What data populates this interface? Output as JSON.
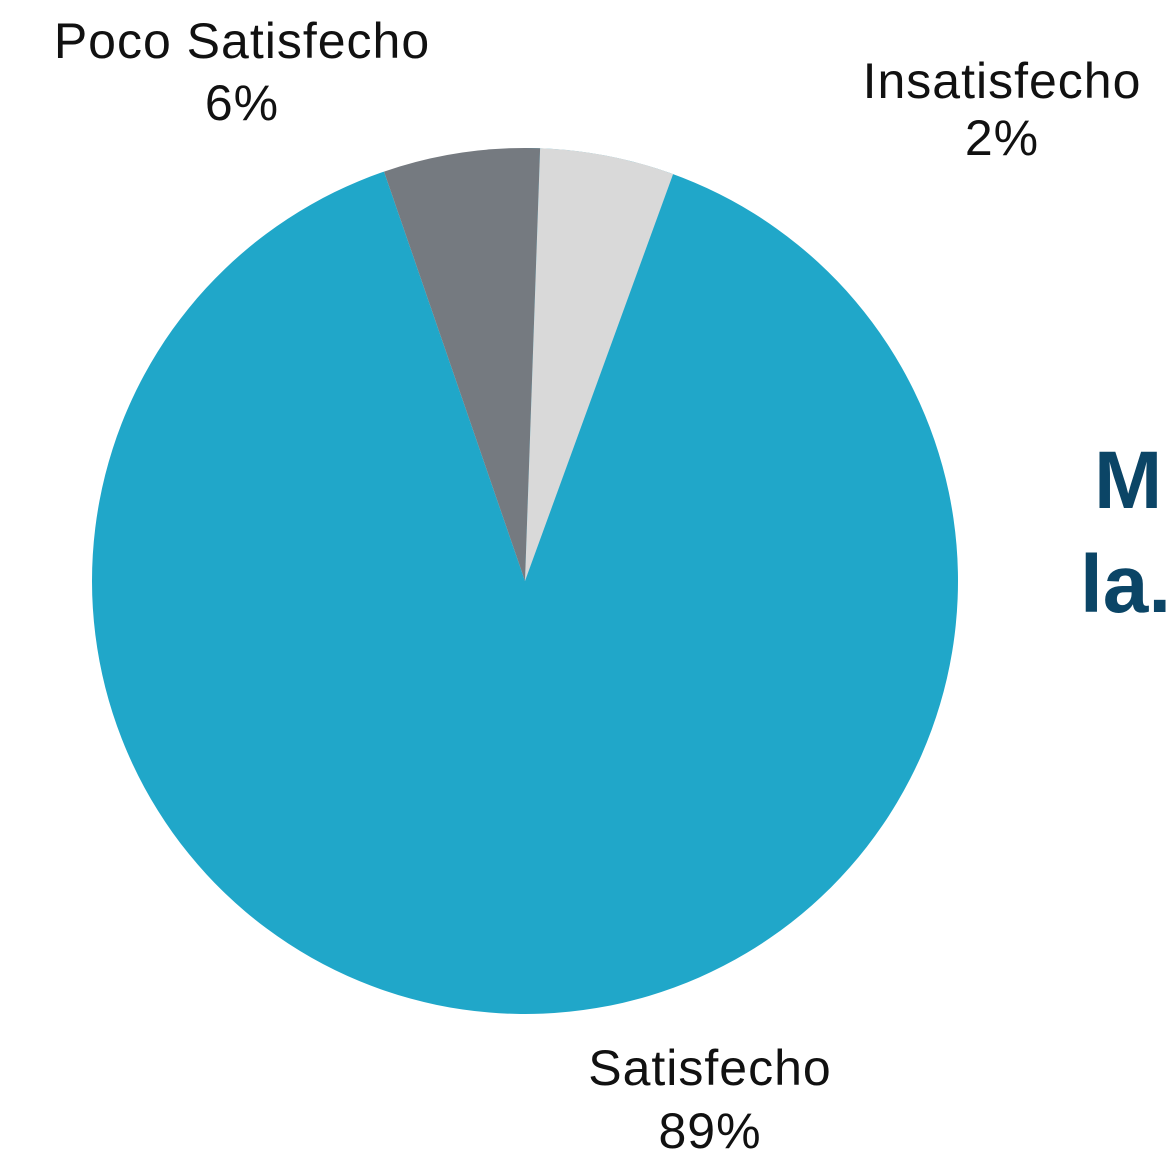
{
  "chart_data": {
    "type": "pie",
    "title": "",
    "slices": [
      {
        "label": "Satisfecho",
        "value": 89,
        "value_label": "89%",
        "color": "#20a7c9"
      },
      {
        "label": "Poco Satisfecho",
        "value": 6,
        "value_label": "6%",
        "color": "#757a80"
      },
      {
        "label": "Insatisfecho",
        "value": 2,
        "value_label": "2%",
        "color": "#d9d9d9"
      }
    ],
    "start_angle_deg": 0,
    "direction": "clockwise"
  },
  "heading_fragment": {
    "line1": "M",
    "line2": "la."
  }
}
